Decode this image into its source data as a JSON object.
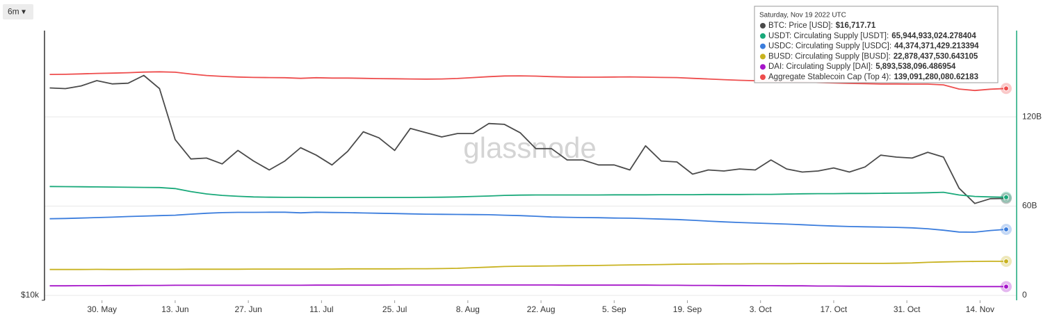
{
  "chart_data": {
    "type": "line",
    "range_button": "6m ▾",
    "watermark": "glassnode",
    "x": [
      "2022-05-20",
      "2022-05-23",
      "2022-05-26",
      "2022-05-29",
      "2022-06-01",
      "2022-06-04",
      "2022-06-07",
      "2022-06-10",
      "2022-06-13",
      "2022-06-16",
      "2022-06-19",
      "2022-06-22",
      "2022-06-25",
      "2022-06-28",
      "2022-07-01",
      "2022-07-04",
      "2022-07-07",
      "2022-07-10",
      "2022-07-13",
      "2022-07-16",
      "2022-07-19",
      "2022-07-22",
      "2022-07-25",
      "2022-07-28",
      "2022-07-31",
      "2022-08-03",
      "2022-08-06",
      "2022-08-09",
      "2022-08-12",
      "2022-08-15",
      "2022-08-18",
      "2022-08-21",
      "2022-08-24",
      "2022-08-27",
      "2022-08-30",
      "2022-09-02",
      "2022-09-05",
      "2022-09-08",
      "2022-09-11",
      "2022-09-14",
      "2022-09-17",
      "2022-09-20",
      "2022-09-23",
      "2022-09-26",
      "2022-09-29",
      "2022-10-02",
      "2022-10-05",
      "2022-10-08",
      "2022-10-11",
      "2022-10-14",
      "2022-10-17",
      "2022-10-20",
      "2022-10-23",
      "2022-10-26",
      "2022-10-29",
      "2022-11-01",
      "2022-11-04",
      "2022-11-07",
      "2022-11-10",
      "2022-11-13",
      "2022-11-16",
      "2022-11-19"
    ],
    "xlim": [
      "2022-05-19",
      "2022-11-21"
    ],
    "xticks": [
      {
        "value": "2022-05-30",
        "label": "30. May"
      },
      {
        "value": "2022-06-13",
        "label": "13. Jun"
      },
      {
        "value": "2022-06-27",
        "label": "27. Jun"
      },
      {
        "value": "2022-07-11",
        "label": "11. Jul"
      },
      {
        "value": "2022-07-25",
        "label": "25. Jul"
      },
      {
        "value": "2022-08-08",
        "label": "8. Aug"
      },
      {
        "value": "2022-08-22",
        "label": "22. Aug"
      },
      {
        "value": "2022-09-05",
        "label": "5. Sep"
      },
      {
        "value": "2022-09-19",
        "label": "19. Sep"
      },
      {
        "value": "2022-10-03",
        "label": "3. Oct"
      },
      {
        "value": "2022-10-17",
        "label": "17. Oct"
      },
      {
        "value": "2022-10-31",
        "label": "31. Oct"
      },
      {
        "value": "2022-11-14",
        "label": "14. Nov"
      }
    ],
    "ylim": [
      10000,
      39000
    ],
    "ylog": true,
    "yticks": [
      {
        "value": 10000,
        "label": "$10k"
      }
    ],
    "y2lim": [
      -3300000000.0,
      178000000000.0
    ],
    "y2ticks": [
      0,
      {
        "value": 60000000000.0,
        "label": "60B"
      },
      {
        "value": 120000000000.0,
        "label": "120B"
      }
    ],
    "grid": true,
    "series": [
      {
        "color": "#4a4a4a",
        "axis": "y",
        "values": [
          29200,
          29100,
          29500,
          30300,
          29800,
          29900,
          31100,
          29100,
          22500,
          20400,
          20500,
          19900,
          21300,
          20200,
          19300,
          20200,
          21600,
          20800,
          19800,
          21200,
          23400,
          22700,
          21300,
          23800,
          23300,
          22800,
          23200,
          23200,
          24400,
          24300,
          23300,
          21500,
          21500,
          20300,
          20300,
          19800,
          19800,
          19300,
          21800,
          20200,
          20100,
          18900,
          19300,
          19200,
          19400,
          19300,
          20300,
          19400,
          19100,
          19200,
          19500,
          19100,
          19600,
          20800,
          20600,
          20500,
          21100,
          20600,
          17600,
          16300,
          16700,
          16717.71
        ]
      },
      {
        "color": "#19a97a",
        "axis": "y2",
        "values": [
          73200000000.0,
          73100000000.0,
          73000000000.0,
          72900000000.0,
          72800000000.0,
          72700000000.0,
          72600000000.0,
          72500000000.0,
          71800000000.0,
          69800000000.0,
          68200000000.0,
          67200000000.0,
          66600000000.0,
          66200000000.0,
          66000000000.0,
          65900000000.0,
          65900000000.0,
          65800000000.0,
          65800000000.0,
          65800000000.0,
          65800000000.0,
          65800000000.0,
          65800000000.0,
          65800000000.0,
          65900000000.0,
          66000000000.0,
          66200000000.0,
          66500000000.0,
          66800000000.0,
          67200000000.0,
          67400000000.0,
          67500000000.0,
          67500000000.0,
          67500000000.0,
          67500000000.0,
          67500000000.0,
          67600000000.0,
          67600000000.0,
          67600000000.0,
          67700000000.0,
          67700000000.0,
          67700000000.0,
          67800000000.0,
          67800000000.0,
          67800000000.0,
          67900000000.0,
          67900000000.0,
          68100000000.0,
          68300000000.0,
          68400000000.0,
          68400000000.0,
          68500000000.0,
          68500000000.0,
          68600000000.0,
          68700000000.0,
          68800000000.0,
          69000000000.0,
          69300000000.0,
          67500000000.0,
          66500000000.0,
          66200000000.0,
          65944933024.278404
        ]
      },
      {
        "color": "#3b7ddd",
        "axis": "y2",
        "values": [
          51500000000.0,
          51700000000.0,
          52000000000.0,
          52300000000.0,
          52600000000.0,
          53000000000.0,
          53300000000.0,
          53600000000.0,
          53900000000.0,
          54600000000.0,
          55200000000.0,
          55600000000.0,
          55800000000.0,
          55800000000.0,
          55900000000.0,
          55900000000.0,
          55500000000.0,
          55900000000.0,
          55700000000.0,
          55600000000.0,
          55400000000.0,
          55200000000.0,
          55000000000.0,
          54800000000.0,
          54600000000.0,
          54500000000.0,
          54400000000.0,
          54300000000.0,
          54200000000.0,
          53900000000.0,
          53600000000.0,
          53200000000.0,
          52700000000.0,
          52500000000.0,
          52300000000.0,
          52200000000.0,
          52000000000.0,
          51900000000.0,
          51600000000.0,
          51300000000.0,
          51000000000.0,
          50500000000.0,
          49900000000.0,
          49400000000.0,
          49000000000.0,
          48600000000.0,
          48300000000.0,
          47900000000.0,
          47500000000.0,
          47000000000.0,
          46600000000.0,
          46300000000.0,
          46100000000.0,
          45900000000.0,
          45700000000.0,
          45400000000.0,
          44800000000.0,
          43800000000.0,
          42600000000.0,
          42500000000.0,
          43600000000.0,
          44374371429.213394
        ]
      },
      {
        "color": "#c8b21f",
        "axis": "y2",
        "values": [
          17400000000.0,
          17400000000.0,
          17400000000.0,
          17500000000.0,
          17400000000.0,
          17400000000.0,
          17500000000.0,
          17500000000.0,
          17500000000.0,
          17600000000.0,
          17600000000.0,
          17600000000.0,
          17600000000.0,
          17700000000.0,
          17700000000.0,
          17700000000.0,
          17700000000.0,
          17700000000.0,
          17700000000.0,
          17800000000.0,
          17800000000.0,
          17800000000.0,
          17800000000.0,
          17900000000.0,
          17900000000.0,
          18000000000.0,
          18200000000.0,
          18600000000.0,
          19000000000.0,
          19400000000.0,
          19600000000.0,
          19700000000.0,
          19800000000.0,
          19900000000.0,
          20000000000.0,
          20100000000.0,
          20300000000.0,
          20500000000.0,
          20600000000.0,
          20700000000.0,
          20900000000.0,
          21000000000.0,
          21100000000.0,
          21200000000.0,
          21200000000.0,
          21300000000.0,
          21300000000.0,
          21300000000.0,
          21400000000.0,
          21400000000.0,
          21500000000.0,
          21500000000.0,
          21500000000.0,
          21500000000.0,
          21600000000.0,
          21800000000.0,
          22200000000.0,
          22500000000.0,
          22700000000.0,
          22800000000.0,
          22900000000.0,
          22878437530.643105
        ]
      },
      {
        "color": "#a514c9",
        "axis": "y2",
        "values": [
          6400000000.0,
          6400000000.0,
          6500000000.0,
          6500000000.0,
          6600000000.0,
          6600000000.0,
          6700000000.0,
          6700000000.0,
          6800000000.0,
          6800000000.0,
          6800000000.0,
          6800000000.0,
          6800000000.0,
          6800000000.0,
          6800000000.0,
          6800000000.0,
          6800000000.0,
          6900000000.0,
          6900000000.0,
          6900000000.0,
          6900000000.0,
          6900000000.0,
          7000000000.0,
          7000000000.0,
          7000000000.0,
          7000000000.0,
          7000000000.0,
          7000000000.0,
          7000000000.0,
          7000000000.0,
          7000000000.0,
          7000000000.0,
          7000000000.0,
          6900000000.0,
          6900000000.0,
          6900000000.0,
          6900000000.0,
          6900000000.0,
          6900000000.0,
          6800000000.0,
          6800000000.0,
          6700000000.0,
          6700000000.0,
          6600000000.0,
          6600000000.0,
          6500000000.0,
          6500000000.0,
          6400000000.0,
          6400000000.0,
          6300000000.0,
          6300000000.0,
          6200000000.0,
          6200000000.0,
          6100000000.0,
          6100000000.0,
          6000000000.0,
          6000000000.0,
          5900000000.0,
          5900000000.0,
          5900000000.0,
          5900000000.0,
          5893538096.486954
        ]
      },
      {
        "color": "#ee4d4d",
        "axis": "y2",
        "values": [
          148500000000.0,
          148600000000.0,
          148900000000.0,
          149200000000.0,
          149400000000.0,
          149700000000.0,
          150100000000.0,
          150300000000.0,
          150000000000.0,
          148800000000.0,
          147800000000.0,
          147200000000.0,
          146800000000.0,
          146500000000.0,
          146400000000.0,
          146300000000.0,
          145900000000.0,
          146300000000.0,
          146100000000.0,
          146100000000.0,
          145900000000.0,
          145700000000.0,
          145600000000.0,
          145500000000.0,
          145400000000.0,
          145500000000.0,
          145800000000.0,
          146400000000.0,
          147000000000.0,
          147500000000.0,
          147600000000.0,
          147400000000.0,
          147000000000.0,
          146800000000.0,
          146700000000.0,
          146700000000.0,
          146800000000.0,
          146900000000.0,
          146700000000.0,
          146500000000.0,
          146400000000.0,
          145900000000.0,
          145500000000.0,
          145000000000.0,
          144600000000.0,
          144300000000.0,
          144000000000.0,
          143700000000.0,
          143600000000.0,
          143100000000.0,
          142800000000.0,
          142500000000.0,
          142300000000.0,
          142100000000.0,
          142100000000.0,
          142000000000.0,
          142000000000.0,
          141500000000.0,
          138700000000.0,
          137700000000.0,
          138600000000.0,
          139091280080.62183
        ]
      }
    ],
    "tooltip": {
      "title": "Saturday, Nov 19 2022 UTC",
      "rows": [
        {
          "label": "BTC: Price [USD]:",
          "value": "$16,717.71"
        },
        {
          "label": "USDT: Circulating Supply [USDT]:",
          "value": "65,944,933,024.278404"
        },
        {
          "label": "USDC: Circulating Supply [USDC]:",
          "value": "44,374,371,429.213394"
        },
        {
          "label": "BUSD: Circulating Supply [BUSD]:",
          "value": "22,878,437,530.643105"
        },
        {
          "label": "DAI: Circulating Supply [DAI]:",
          "value": "5,893,538,096.486954"
        },
        {
          "label": "Aggregate Stablecoin Cap (Top 4):",
          "value": "139,091,280,080.62183"
        }
      ]
    }
  }
}
